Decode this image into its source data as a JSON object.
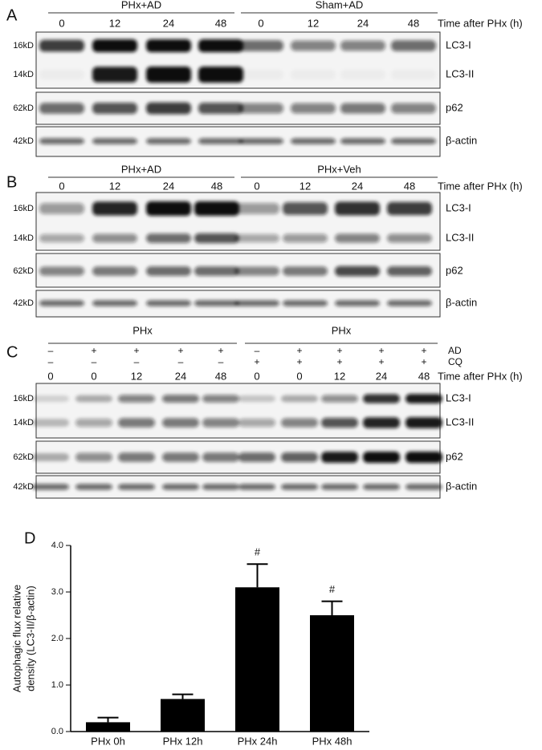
{
  "panels": [
    {
      "label": "A",
      "groups": [
        "PHx+AD",
        "Sham+AD"
      ],
      "time_label": "Time after PHx (h)",
      "times": [
        0,
        12,
        24,
        48,
        0,
        12,
        24,
        48
      ],
      "blots": [
        {
          "markers": [
            "16kD",
            "14kD"
          ],
          "proteins": [
            "LC3-I",
            "LC3-II"
          ]
        },
        {
          "markers": [
            "62kD"
          ],
          "proteins": [
            "p62"
          ]
        },
        {
          "markers": [
            "42kD"
          ],
          "proteins": [
            "β-actin"
          ]
        }
      ]
    },
    {
      "label": "B",
      "groups": [
        "PHx+AD",
        "PHx+Veh"
      ],
      "time_label": "Time after PHx (h)",
      "times": [
        0,
        12,
        24,
        48,
        0,
        12,
        24,
        48
      ],
      "blots": [
        {
          "markers": [
            "16kD",
            "14kD"
          ],
          "proteins": [
            "LC3-I",
            "LC3-II"
          ]
        },
        {
          "markers": [
            "62kD"
          ],
          "proteins": [
            "p62"
          ]
        },
        {
          "markers": [
            "42kD"
          ],
          "proteins": [
            "β-actin"
          ]
        }
      ]
    },
    {
      "label": "C",
      "groups": [
        "PHx",
        "PHx"
      ],
      "time_label": "Time after PHx (h)",
      "treatments": [
        {
          "name": "AD",
          "signs": [
            "–",
            "+",
            "+",
            "+",
            "+",
            "–",
            "+",
            "+",
            "+",
            "+"
          ]
        },
        {
          "name": "CQ",
          "signs": [
            "–",
            "–",
            "–",
            "–",
            "–",
            "+",
            "+",
            "+",
            "+",
            "+"
          ]
        }
      ],
      "times": [
        0,
        0,
        12,
        24,
        48,
        0,
        0,
        12,
        24,
        48
      ],
      "blots": [
        {
          "markers": [
            "16kD",
            "14kD"
          ],
          "proteins": [
            "LC3-I",
            "LC3-II"
          ]
        },
        {
          "markers": [
            "62kD"
          ],
          "proteins": [
            "p62"
          ]
        },
        {
          "markers": [
            "42kD"
          ],
          "proteins": [
            "β-actin"
          ]
        }
      ]
    }
  ],
  "chart_data": {
    "type": "bar",
    "label": "D",
    "y_label": [
      "Autophagic flux relative",
      "density (LC3-II/β-actin)"
    ],
    "categories": [
      "PHx 0h",
      "PHx 12h",
      "PHx 24h",
      "PHx 48h"
    ],
    "values": [
      0.2,
      0.7,
      3.1,
      2.5
    ],
    "errors": [
      0.1,
      0.1,
      0.5,
      0.3
    ],
    "annotations": [
      null,
      null,
      "#",
      "#"
    ],
    "color": "#000000",
    "ylim": [
      0,
      4
    ],
    "yticks": [
      {
        "value": 0,
        "label": "0.0"
      },
      {
        "value": 1,
        "label": "1.0"
      },
      {
        "value": 2,
        "label": "2.0"
      },
      {
        "value": 3,
        "label": "3.0"
      },
      {
        "value": 4,
        "label": "4.0"
      }
    ]
  }
}
